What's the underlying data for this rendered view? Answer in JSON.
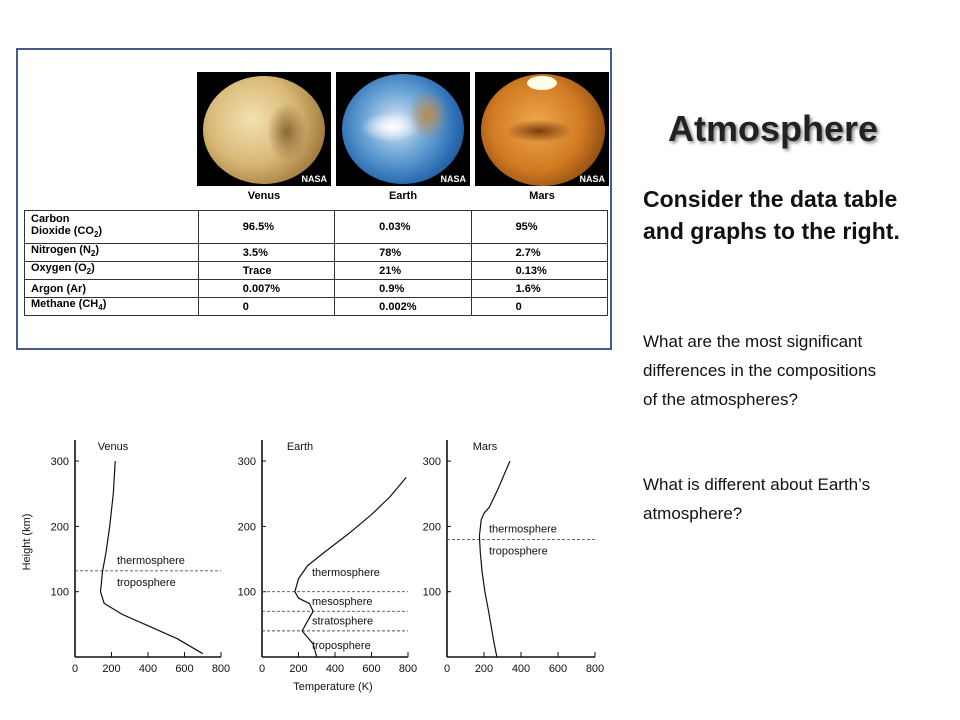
{
  "slide": {
    "title": "Atmosphere",
    "lead": "Consider the data table and graphs to the right.",
    "question1": "What are the most significant differences in the compositions of the atmospheres?",
    "question2": "What is different about Earth’s atmosphere?"
  },
  "planets": [
    {
      "name": "Venus",
      "badge": "NASA"
    },
    {
      "name": "Earth",
      "badge": "NASA"
    },
    {
      "name": "Mars",
      "badge": "NASA"
    }
  ],
  "composition_table": {
    "rows": [
      {
        "gas_line1": "Carbon",
        "gas_line2": "Dioxide (CO",
        "sub": "2",
        "tail": ")",
        "venus": "96.5%",
        "earth": "0.03%",
        "mars": "95%"
      },
      {
        "gas_line1": "",
        "gas_line2": "Nitrogen (N",
        "sub": "2",
        "tail": ")",
        "venus": "3.5%",
        "earth": "78%",
        "mars": "2.7%"
      },
      {
        "gas_line1": "",
        "gas_line2": "Oxygen (O",
        "sub": "2",
        "tail": ")",
        "venus": "Trace",
        "earth": "21%",
        "mars": "0.13%"
      },
      {
        "gas_line1": "",
        "gas_line2": "Argon (Ar)",
        "sub": "",
        "tail": "",
        "venus": "0.007%",
        "earth": "0.9%",
        "mars": "1.6%"
      },
      {
        "gas_line1": "",
        "gas_line2": "Methane (CH",
        "sub": "4",
        "tail": ")",
        "venus": "0",
        "earth": "0.002%",
        "mars": "0"
      }
    ]
  },
  "chart_data": [
    {
      "type": "line",
      "title": "Venus",
      "ylabel": "Height (km)",
      "xlabel": "",
      "xlim": [
        0,
        800
      ],
      "ylim": [
        0,
        320
      ],
      "xticks": [
        "0",
        "200",
        "400",
        "600",
        "800"
      ],
      "yticks": [
        "100",
        "200",
        "300"
      ],
      "series": [
        {
          "x": [
            220,
            210,
            190,
            170,
            150,
            145,
            140,
            160,
            260,
            400,
            560,
            700
          ],
          "y": [
            300,
            250,
            200,
            160,
            130,
            115,
            100,
            82,
            65,
            48,
            28,
            5
          ]
        }
      ],
      "boundaries": [
        {
          "y": 132,
          "above": "thermosphere",
          "below": "troposphere"
        }
      ]
    },
    {
      "type": "line",
      "title": "Earth",
      "ylabel": "",
      "xlabel": "Temperature (K)",
      "xlim": [
        0,
        800
      ],
      "ylim": [
        0,
        320
      ],
      "xticks": [
        "0",
        "200",
        "400",
        "600",
        "800"
      ],
      "yticks": [
        "100",
        "200",
        "300"
      ],
      "series": [
        {
          "x": [
            790,
            700,
            600,
            480,
            340,
            250,
            200,
            180,
            200,
            260,
            280,
            250,
            220,
            280,
            300
          ],
          "y": [
            275,
            245,
            218,
            190,
            160,
            140,
            120,
            100,
            90,
            82,
            70,
            55,
            40,
            20,
            0
          ]
        }
      ],
      "boundaries": [
        {
          "y": 100
        },
        {
          "y": 70
        },
        {
          "y": 40
        }
      ],
      "layers": [
        "thermosphere",
        "mesosphere",
        "stratosphere",
        "troposphere"
      ]
    },
    {
      "type": "line",
      "title": "Mars",
      "ylabel": "",
      "xlabel": "",
      "xlim": [
        0,
        800
      ],
      "ylim": [
        0,
        320
      ],
      "xticks": [
        "0",
        "200",
        "400",
        "600",
        "800"
      ],
      "yticks": [
        "100",
        "200",
        "300"
      ],
      "series": [
        {
          "x": [
            340,
            280,
            230,
            200,
            185,
            175,
            180,
            190,
            205,
            225,
            240,
            255,
            270
          ],
          "y": [
            300,
            260,
            230,
            220,
            210,
            185,
            160,
            130,
            100,
            70,
            45,
            20,
            0
          ]
        }
      ],
      "boundaries": [
        {
          "y": 180,
          "above": "thermosphere",
          "below": "troposphere"
        }
      ]
    }
  ],
  "colors": {
    "title": "#222222",
    "border": "#4a5a8c"
  }
}
